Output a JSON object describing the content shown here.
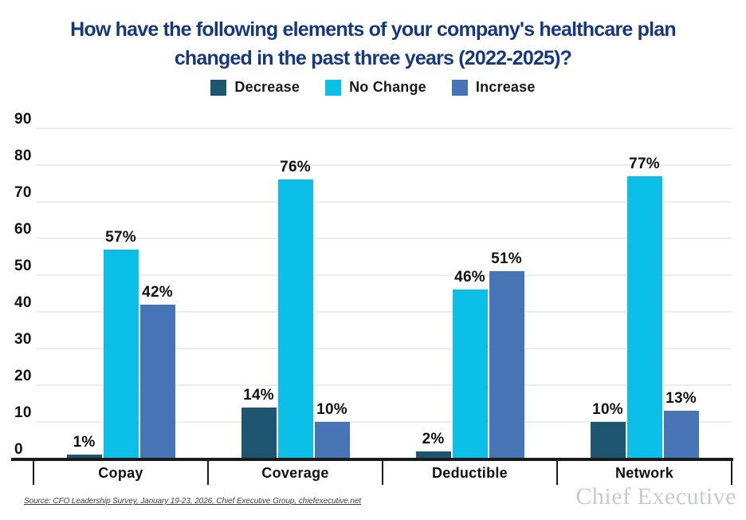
{
  "title": {
    "line1": "How have the following elements of your company's healthcare plan",
    "line2": "changed in the past three years (2022-2025)?"
  },
  "chart_data": {
    "type": "bar",
    "title": "How have the following elements of your company's healthcare plan changed in the past three years (2022-2025)?",
    "categories": [
      "Copay",
      "Coverage",
      "Deductible",
      "Network"
    ],
    "series": [
      {
        "name": "Decrease",
        "color": "#1e5571",
        "values": [
          1,
          14,
          2,
          10
        ]
      },
      {
        "name": "No Change",
        "color": "#0bbfe9",
        "values": [
          57,
          76,
          46,
          77
        ]
      },
      {
        "name": "Increase",
        "color": "#4674b4",
        "values": [
          42,
          10,
          51,
          13
        ]
      }
    ],
    "value_suffix": "%",
    "ylim": [
      0,
      90
    ],
    "yticks": [
      0,
      10,
      20,
      30,
      40,
      50,
      60,
      70,
      80,
      90
    ],
    "grid": true,
    "legend_position": "top-center",
    "colors": {
      "title": "#16387d",
      "gridline": "#ededed",
      "axis": "#1a1a1a",
      "label": "#111111"
    }
  },
  "footer": {
    "source": "Source: CFO Leadership Survey, January 19-23, 2026, Chief Executive Group, chiefexecutive.net",
    "brand": "Chief Executive"
  }
}
